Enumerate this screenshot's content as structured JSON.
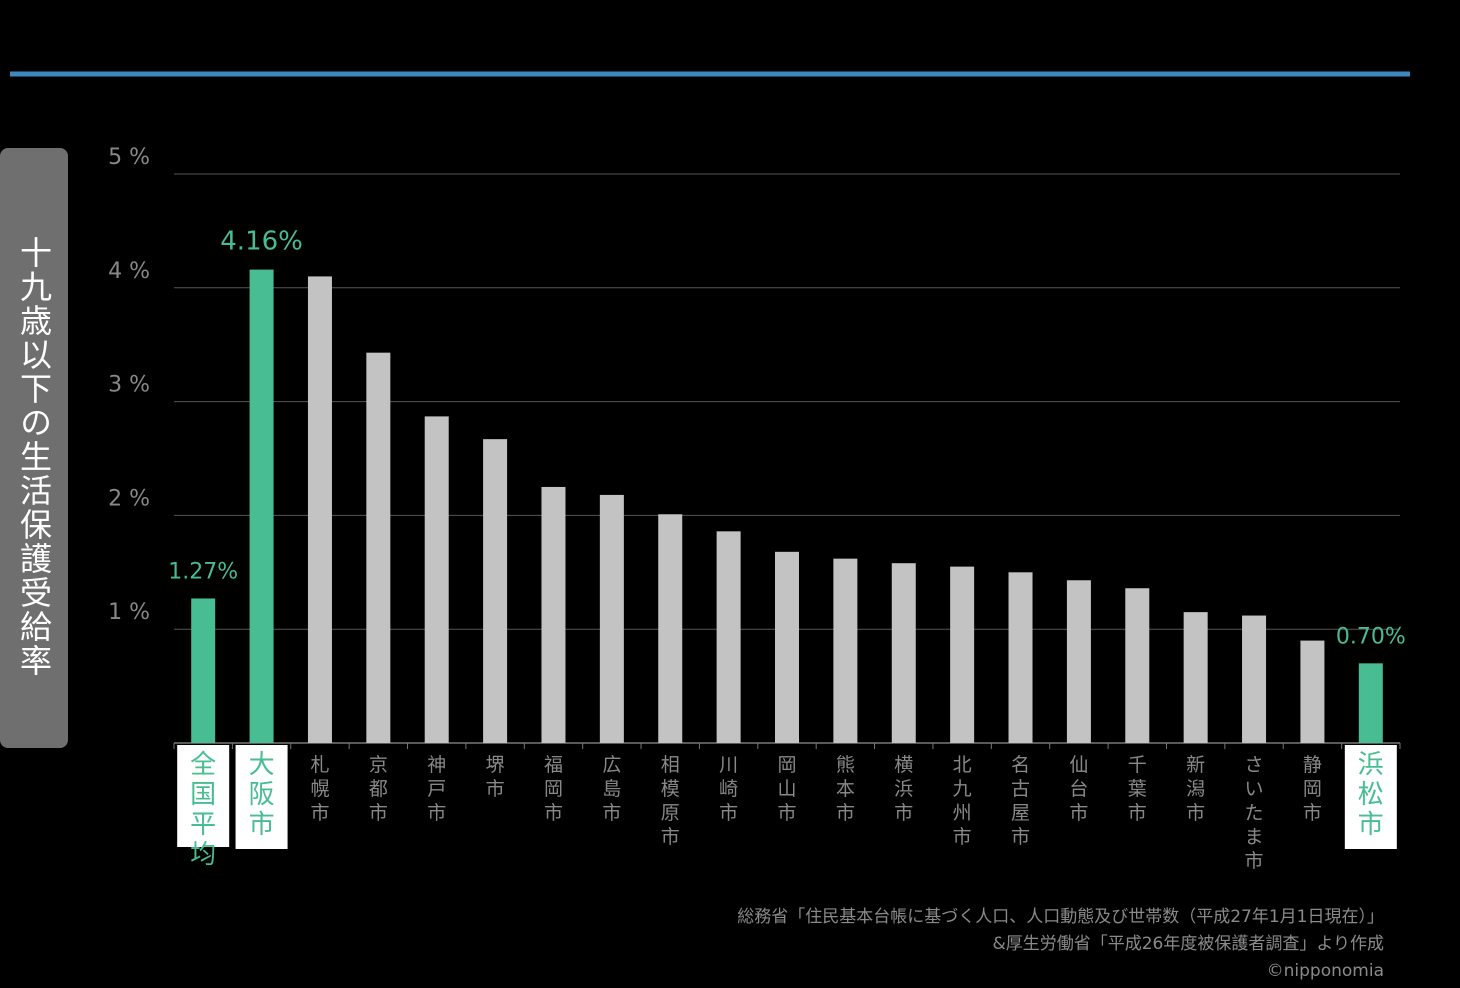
{
  "chart_data": {
    "type": "bar",
    "ylabel": "十九歳以下の生活保護受給率",
    "ylim": [
      0,
      5
    ],
    "yticks": [
      "1 %",
      "2 %",
      "3 %",
      "4 %",
      "5 %"
    ],
    "categories": [
      "全国平均",
      "大阪市",
      "札幌市",
      "京都市",
      "神戸市",
      "堺市",
      "福岡市",
      "広島市",
      "相模原市",
      "川崎市",
      "岡山市",
      "熊本市",
      "横浜市",
      "北九州市",
      "名古屋市",
      "仙台市",
      "千葉市",
      "新潟市",
      "さいたま市",
      "静岡市",
      "浜松市"
    ],
    "values": [
      1.27,
      4.16,
      4.1,
      3.43,
      2.87,
      2.67,
      2.25,
      2.18,
      2.01,
      1.86,
      1.68,
      1.62,
      1.58,
      1.55,
      1.5,
      1.43,
      1.36,
      1.15,
      1.12,
      0.9,
      0.7
    ],
    "highlighted": [
      true,
      true,
      false,
      false,
      false,
      false,
      false,
      false,
      false,
      false,
      false,
      false,
      false,
      false,
      false,
      false,
      false,
      false,
      false,
      false,
      true
    ],
    "annotations": {
      "0": "1.27%",
      "1": "4.16%",
      "20": "0.70%"
    },
    "grid": true,
    "colors": {
      "highlight": "#48bc92",
      "normal": "#c3c3c3",
      "accent_line": "#3d88c0",
      "grid": "#555555",
      "tick_text": "#888888",
      "background": "#000000"
    }
  },
  "source": {
    "line1": "総務省「住民基本台帳に基づく人口、人口動態及び世帯数（平成27年1月1日現在）」",
    "line2": "&厚生労働省「平成26年度被保護者調査」より作成",
    "line3": "©nipponomia"
  }
}
